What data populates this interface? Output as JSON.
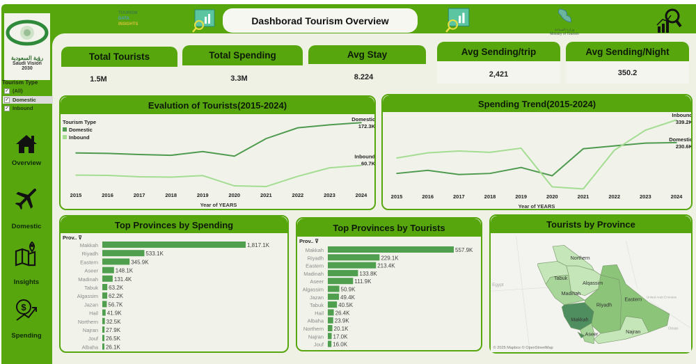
{
  "header": {
    "title": "Dashborad Tourism Overview",
    "brand_logo_text": [
      "TOURISM",
      "DATA",
      "INSIGHTS"
    ],
    "ministry_logo_text": [
      "وزارة السياحة",
      "Ministry of Tourism"
    ]
  },
  "sidebar": {
    "vision_logo": {
      "arabic": "رؤية السعودية",
      "line1": "Saudi Vision",
      "line2": "2030"
    },
    "filter": {
      "title": "Tourism Type",
      "options": [
        {
          "label": "(All)",
          "checked": true
        },
        {
          "label": "Domestic",
          "checked": true
        },
        {
          "label": "Inbound",
          "checked": true
        }
      ]
    },
    "nav": [
      {
        "label": "Overview",
        "icon": "house-icon"
      },
      {
        "label": "Domestic",
        "icon": "airplane-icon"
      },
      {
        "label": "Insights",
        "icon": "map-pin-icon"
      },
      {
        "label": "Spending",
        "icon": "dollar-growth-icon"
      }
    ]
  },
  "kpis": [
    {
      "label": "Total Tourists",
      "value": "1.5M"
    },
    {
      "label": "Total Spending",
      "value": "3.3M"
    },
    {
      "label": "Avg Stay",
      "value": "8.224"
    },
    {
      "label": "Avg Sending/trip",
      "value": "2,421"
    },
    {
      "label": "Avg Sending/Night",
      "value": "350.2"
    }
  ],
  "colors": {
    "brand_green": "#58a60e",
    "domestic": "#4e9a4e",
    "inbound": "#a4dc92",
    "bar": "#4f9f4f"
  },
  "chart_data": [
    {
      "type": "line",
      "title": "Evalution of Tourists(2015-2024)",
      "xlabel": "Year of YEARS",
      "legend": {
        "title": "Tourism Type",
        "placement": "top-left"
      },
      "x": [
        2015,
        2016,
        2017,
        2018,
        2019,
        2020,
        2021,
        2022,
        2023,
        2024
      ],
      "series": [
        {
          "name": "Domestic",
          "values": [
            93.1,
            92.0,
            89.0,
            87.0,
            96.7,
            84.8,
            130.7,
            158.8,
            166.6,
            172.3
          ],
          "end_label": "172.3K"
        },
        {
          "name": "Inbound",
          "values": [
            35.2,
            34.6,
            31.0,
            29.9,
            34.0,
            7.2,
            5.4,
            32.2,
            54.3,
            60.7
          ],
          "end_label": "60.7K"
        }
      ],
      "grid": false
    },
    {
      "type": "line",
      "title": "Spending Trend(2015-2024)",
      "xlabel": "Year of YEARS",
      "x": [
        2015,
        2016,
        2017,
        2018,
        2019,
        2020,
        2021,
        2022,
        2023,
        2024
      ],
      "series": [
        {
          "name": "Domestic",
          "values": [
            82.7,
            97.5,
            77.7,
            82.7,
            111.0,
            71.6,
            201.0,
            214.7,
            228.0,
            230.6
          ],
          "end_label": "230.6K"
        },
        {
          "name": "Inbound",
          "values": [
            156.7,
            181.4,
            190.0,
            183.9,
            203.6,
            18.5,
            8.6,
            193.7,
            290.0,
            339.2
          ],
          "end_label": "339.2K"
        }
      ],
      "grid": false
    },
    {
      "type": "bar",
      "orientation": "horizontal",
      "title": "Top Provinces by Spending",
      "header": "Prov..",
      "categories": [
        "Makkah",
        "Riyadh",
        "Eastern",
        "Aseer",
        "Madinah",
        "Tabuk",
        "Algassim",
        "Jazan",
        "Hail",
        "Northern",
        "Najran",
        "Jouf",
        "Albaha"
      ],
      "values": [
        1817.1,
        533.1,
        345.9,
        148.1,
        131.4,
        63.2,
        62.2,
        56.7,
        41.9,
        32.5,
        27.9,
        26.5,
        26.1
      ],
      "labels": [
        "1,817.1K",
        "533.1K",
        "345.9K",
        "148.1K",
        "131.4K",
        "63.2K",
        "62.2K",
        "56.7K",
        "41.9K",
        "32.5K",
        "27.9K",
        "26.5K",
        "26.1K"
      ]
    },
    {
      "type": "bar",
      "orientation": "horizontal",
      "title": "Top Provinces by Tourists",
      "header": "Prov..",
      "categories": [
        "Makkah",
        "Riyadh",
        "Eastern",
        "Madinah",
        "Aseer",
        "Algassim",
        "Jazan",
        "Tabuk",
        "Hail",
        "Albaha",
        "Northern",
        "Najran",
        "Jouf"
      ],
      "values": [
        557.9,
        229.1,
        213.4,
        133.8,
        111.9,
        50.9,
        49.4,
        40.5,
        26.4,
        23.9,
        20.1,
        17.0,
        16.0
      ],
      "labels": [
        "557.9K",
        "229.1K",
        "213.4K",
        "133.8K",
        "111.9K",
        "50.9K",
        "49.4K",
        "40.5K",
        "26.4K",
        "23.9K",
        "20.1K",
        "17.0K",
        "16.0K"
      ]
    }
  ],
  "map": {
    "title": "Tourists by Province",
    "regions": [
      "Northern",
      "Tabuk",
      "Alqassim",
      "Madinah",
      "Riyadh",
      "Eastern",
      "Makkah",
      "Aseer",
      "Najran"
    ],
    "other_labels": [
      "Egypt",
      "United Arab Emirates",
      "Oman"
    ],
    "attribution": "© 2025 Mapbox © OpenStreetMap"
  }
}
